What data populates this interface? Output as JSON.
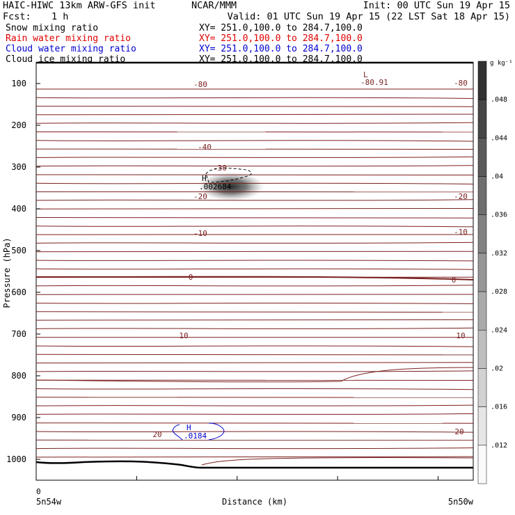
{
  "header": {
    "model": "HAIC-HIWC 13km ARW-GFS init",
    "org": "NCAR/MMM",
    "init": "Init: 00 UTC Sun 19 Apr 15",
    "fcst_label": "Fcst:",
    "fcst_value": "1 h",
    "valid": "Valid: 01 UTC Sun 19 Apr 15 (22 LST Sat 18 Apr 15)"
  },
  "fields": [
    {
      "name": "Snow mixing ratio",
      "xy": "XY= 251.0,100.0 to 284.7,100.0",
      "color": "#000000"
    },
    {
      "name": "Rain water mixing ratio",
      "xy": "XY= 251.0,100.0 to 284.7,100.0",
      "color": "#e00000"
    },
    {
      "name": "Cloud water mixing ratio",
      "xy": "XY= 251.0,100.0 to 284.7,100.0",
      "color": "#0000d0"
    },
    {
      "name": "Cloud ice mixing ratio",
      "xy": "XY= 251.0,100.0 to 284.7,100.0",
      "color": "#000000"
    }
  ],
  "chart_data": {
    "type": "contour",
    "ylabel": "Pressure (hPa)",
    "xlabel": "Distance (km)",
    "ylim": [
      1050,
      50
    ],
    "y_ticks": [
      "100",
      "200",
      "300",
      "400",
      "500",
      "600",
      "700",
      "800",
      "900",
      "1000"
    ],
    "x_tick_label": "0",
    "x_left_label": "5n54w",
    "x_right_label": "5n50w",
    "colorbar": {
      "unit": "g kg⁻¹",
      "ticks": [
        ".048",
        ".044",
        ".04",
        ".036",
        ".032",
        ".028",
        ".024",
        ".02",
        ".016",
        ".012"
      ]
    },
    "temperature_contour_labels": [
      "-80",
      "-40",
      "-30",
      "-20",
      "-10",
      "0",
      "10",
      "20"
    ],
    "low_marker": {
      "symbol": "L",
      "value": "-80.91"
    },
    "cloud_ice_max": {
      "symbol": "H",
      "value": ".002684",
      "pressure": 345
    },
    "cloud_water_max": {
      "symbol": "H",
      "value": ".0184",
      "pressure": 925
    }
  },
  "colors": {
    "isotherm": "#7a1f1f",
    "cloud_water": "#0000d0",
    "ground": "#000000"
  }
}
